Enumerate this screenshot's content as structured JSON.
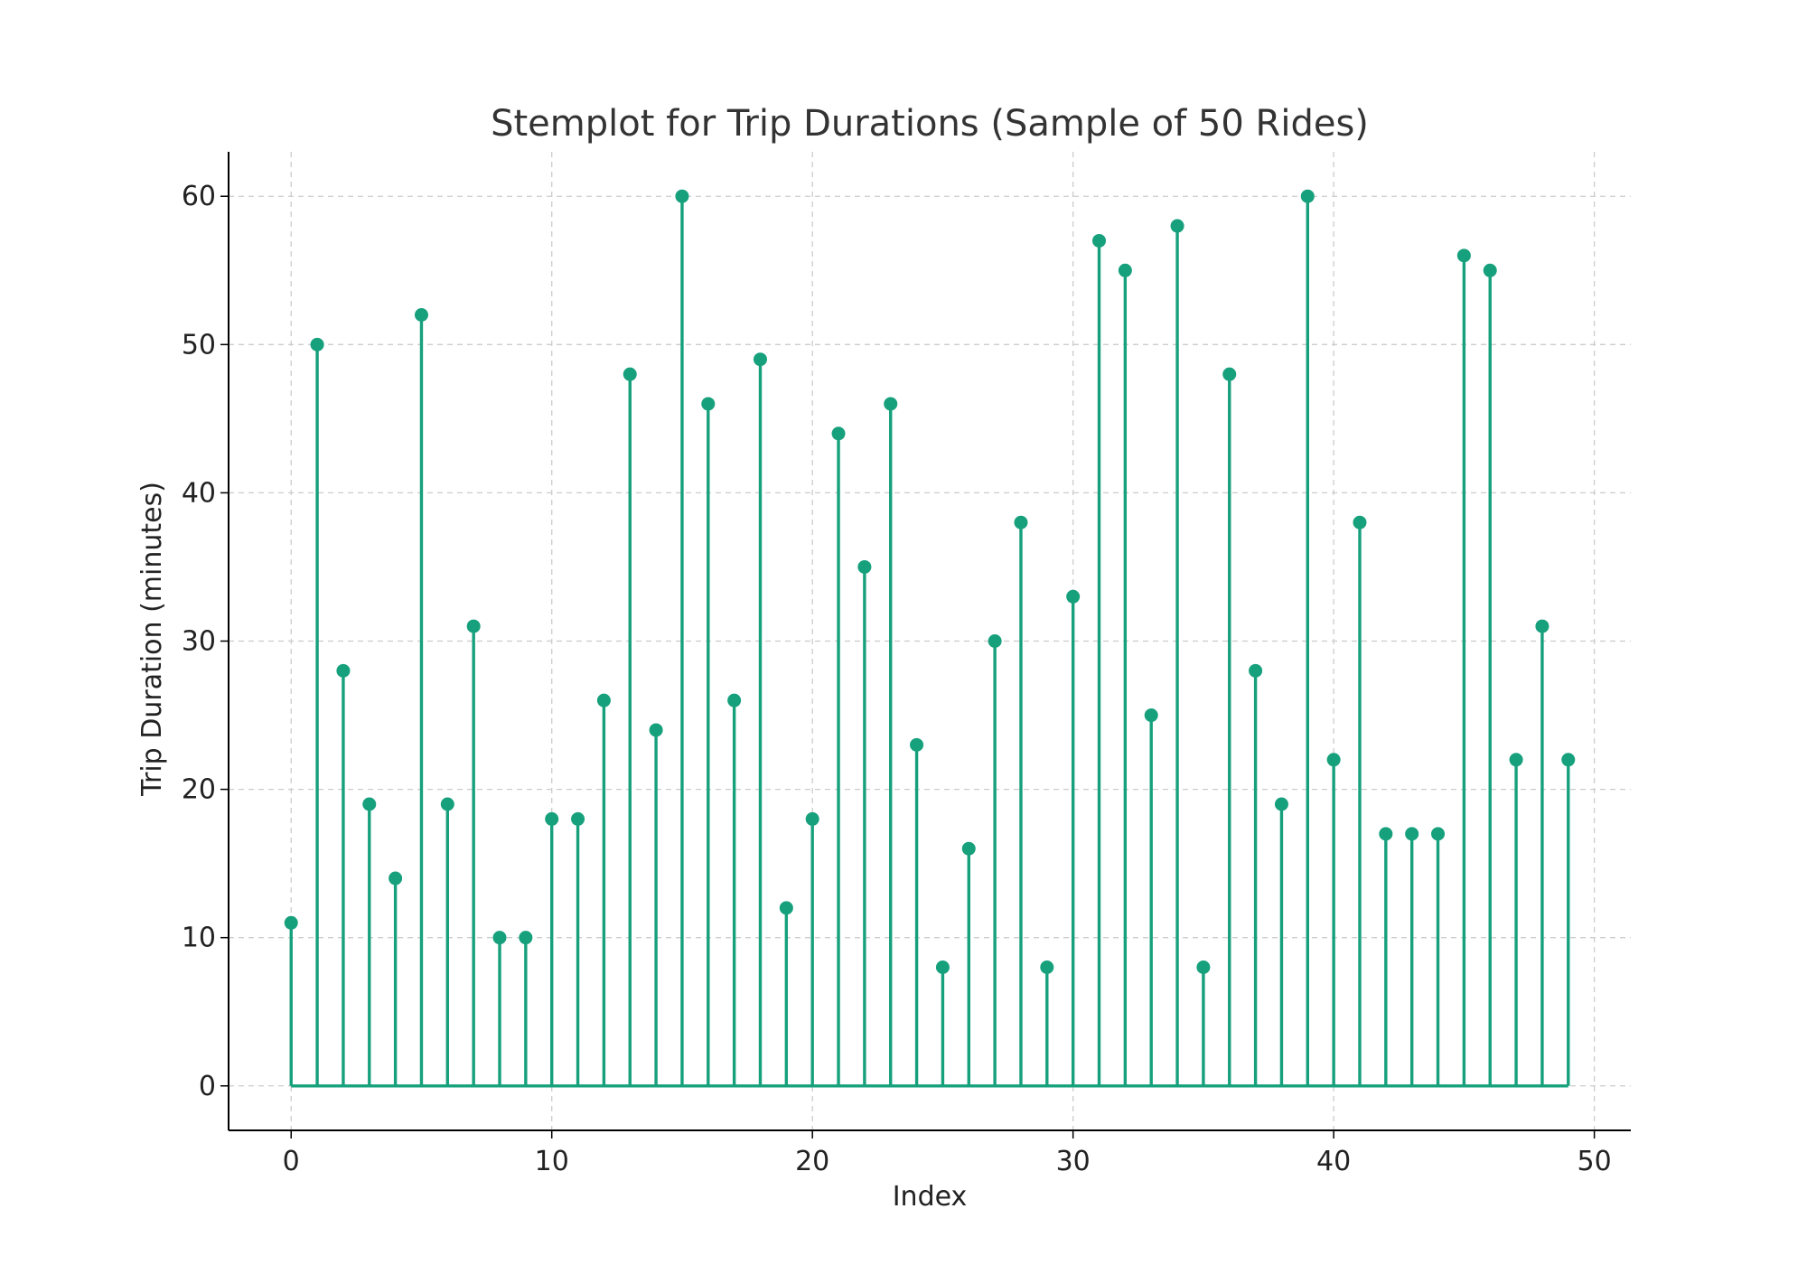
{
  "chart_data": {
    "type": "stem",
    "title": "Stemplot for Trip Durations (Sample of 50 Rides)",
    "xlabel": "Index",
    "ylabel": "Trip Duration (minutes)",
    "x": [
      0,
      1,
      2,
      3,
      4,
      5,
      6,
      7,
      8,
      9,
      10,
      11,
      12,
      13,
      14,
      15,
      16,
      17,
      18,
      19,
      20,
      21,
      22,
      23,
      24,
      25,
      26,
      27,
      28,
      29,
      30,
      31,
      32,
      33,
      34,
      35,
      36,
      37,
      38,
      39,
      40,
      41,
      42,
      43,
      44,
      45,
      46,
      47,
      48,
      49
    ],
    "values": [
      11,
      50,
      28,
      19,
      14,
      52,
      19,
      31,
      10,
      10,
      18,
      18,
      26,
      48,
      24,
      60,
      46,
      26,
      49,
      12,
      18,
      44,
      35,
      46,
      23,
      8,
      16,
      30,
      38,
      8,
      33,
      57,
      55,
      25,
      58,
      8,
      48,
      28,
      19,
      60,
      22,
      38,
      17,
      17,
      17,
      56,
      55,
      22,
      31,
      22
    ],
    "xlim": [
      -2.4,
      51.4
    ],
    "ylim": [
      -3,
      63
    ],
    "xticks": [
      0,
      10,
      20,
      30,
      40,
      50
    ],
    "yticks": [
      0,
      10,
      20,
      30,
      40,
      50,
      60
    ],
    "grid": true,
    "color": "#16a07c"
  }
}
